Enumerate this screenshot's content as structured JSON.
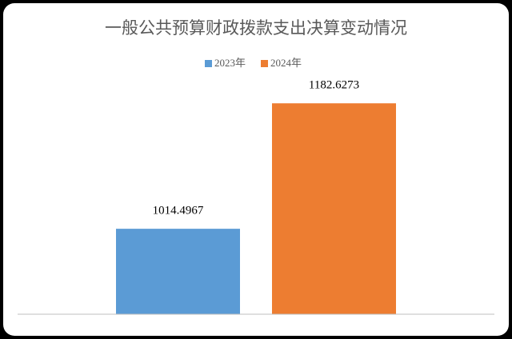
{
  "chart_data": {
    "type": "bar",
    "title": "一般公共预算财政拨款支出决算变动情况",
    "categories": [
      null
    ],
    "series": [
      {
        "name": "2023年",
        "color": "#5b9bd5",
        "values": [
          1014.4967
        ]
      },
      {
        "name": "2024年",
        "color": "#ed7d31",
        "values": [
          1182.6273
        ]
      }
    ],
    "ylim": [
      900,
      1200
    ]
  }
}
